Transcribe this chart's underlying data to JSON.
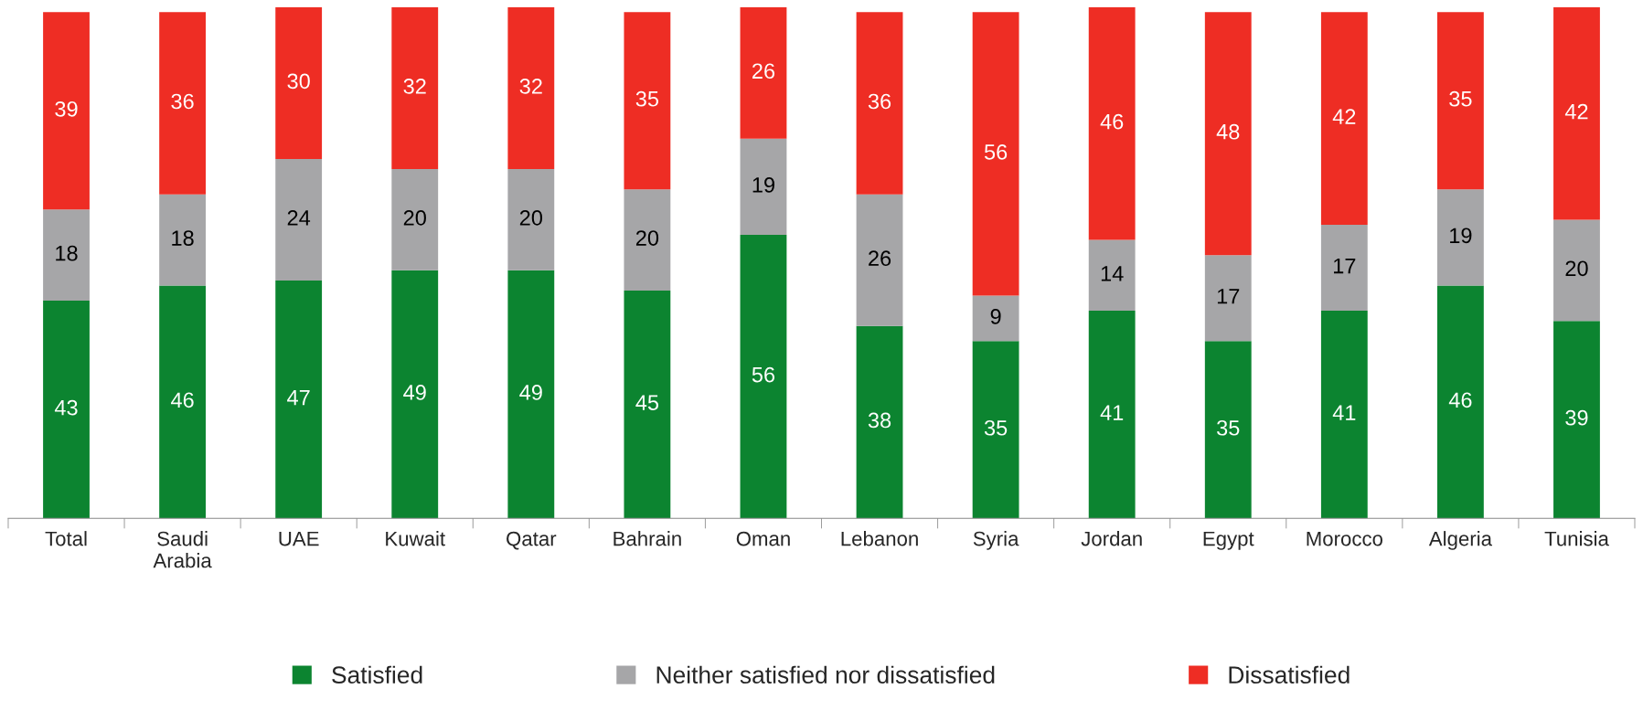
{
  "chart_data": {
    "type": "bar",
    "stacked": true,
    "data_labels": true,
    "legend": "bottom",
    "grid": false,
    "categories": [
      "Total",
      "Saudi\nArabia",
      "UAE",
      "Kuwait",
      "Qatar",
      "Bahrain",
      "Oman",
      "Lebanon",
      "Syria",
      "Jordan",
      "Egypt",
      "Morocco",
      "Algeria",
      "Tunisia"
    ],
    "series": [
      {
        "name": "Satisfied",
        "color": "#0c8430",
        "values": [
          43,
          46,
          47,
          49,
          49,
          45,
          56,
          38,
          35,
          41,
          35,
          41,
          46,
          39
        ]
      },
      {
        "name": "Neither satisfied nor dissatisfied",
        "color": "#a6a6a8",
        "values": [
          18,
          18,
          24,
          20,
          20,
          20,
          19,
          26,
          9,
          14,
          17,
          17,
          19,
          20
        ]
      },
      {
        "name": "Dissatisfied",
        "color": "#ee2d24",
        "values": [
          39,
          36,
          30,
          32,
          32,
          35,
          26,
          36,
          56,
          46,
          48,
          42,
          35,
          42
        ]
      }
    ]
  }
}
